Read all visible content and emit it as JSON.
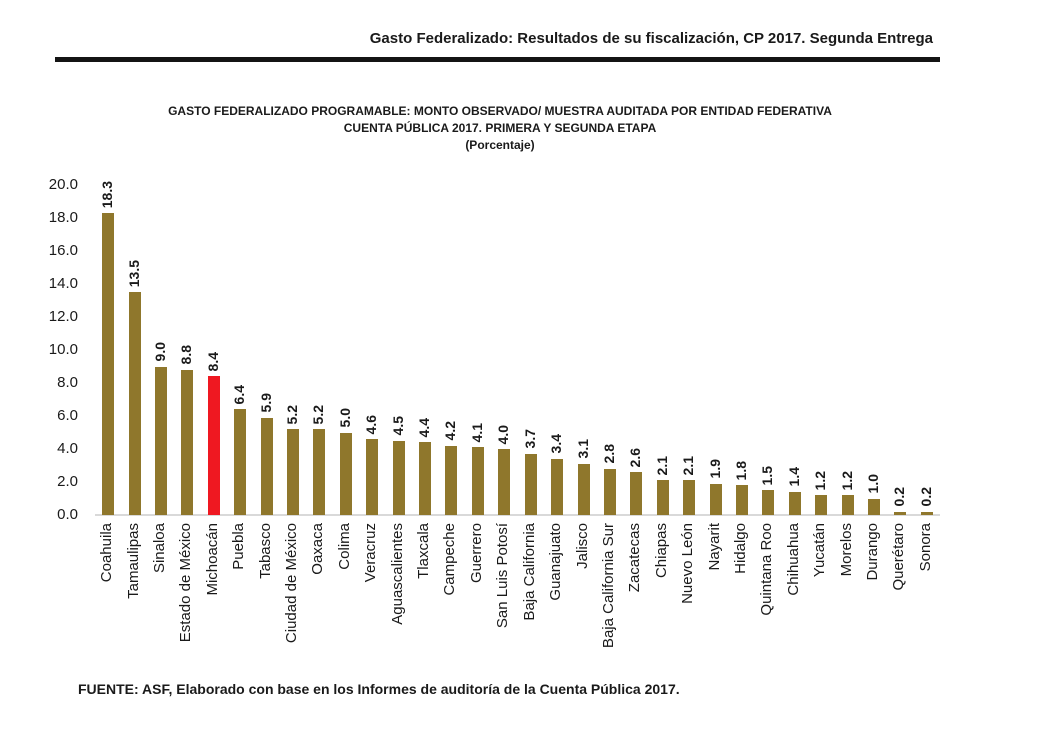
{
  "page": {
    "header": "Gasto Federalizado: Resultados de su fiscalización, CP 2017. Segunda Entrega",
    "footer": "FUENTE: ASF, Elaborado con base en los Informes de auditoría de la Cuenta Pública 2017."
  },
  "chart_data": {
    "type": "bar",
    "title": "GASTO FEDERALIZADO PROGRAMABLE: MONTO OBSERVADO/ MUESTRA AUDITADA POR ENTIDAD FEDERATIVA",
    "subtitle": "CUENTA PÚBLICA 2017. PRIMERA Y SEGUNDA ETAPA",
    "unit_note": "(Porcentaje)",
    "xlabel": "",
    "ylabel": "",
    "ylim": [
      0,
      20
    ],
    "ytick_step": 2,
    "grid": false,
    "legend": "none",
    "value_label_decimals": 1,
    "categories": [
      "Coahuila",
      "Tamaulipas",
      "Sinaloa",
      "Estado de México",
      "Michoacán",
      "Puebla",
      "Tabasco",
      "Ciudad de México",
      "Oaxaca",
      "Colima",
      "Veracruz",
      "Aguascalientes",
      "Tlaxcala",
      "Campeche",
      "Guerrero",
      "San Luis Potosí",
      "Baja California",
      "Guanajuato",
      "Jalisco",
      "Baja California Sur",
      "Zacatecas",
      "Chiapas",
      "Nuevo León",
      "Nayarit",
      "Hidalgo",
      "Quintana Roo",
      "Chihuahua",
      "Yucatán",
      "Morelos",
      "Durango",
      "Querétaro",
      "Sonora"
    ],
    "values": [
      18.3,
      13.5,
      9.0,
      8.8,
      8.4,
      6.4,
      5.9,
      5.2,
      5.2,
      5.0,
      4.6,
      4.5,
      4.4,
      4.2,
      4.1,
      4.0,
      3.7,
      3.4,
      3.1,
      2.8,
      2.6,
      2.1,
      2.1,
      1.9,
      1.8,
      1.5,
      1.4,
      1.2,
      1.2,
      1.0,
      0.2,
      0.2
    ],
    "highlight": {
      "category": "Michoacán",
      "index": 4
    },
    "colors": {
      "bar": "#8F772C",
      "highlight": "#EF1821",
      "axis_line": "#D9D9D9",
      "text": "#1A1A1A"
    }
  }
}
